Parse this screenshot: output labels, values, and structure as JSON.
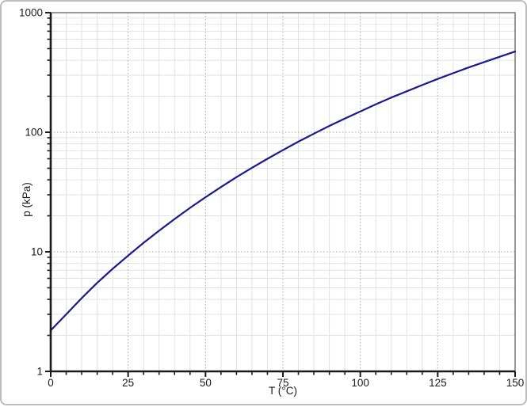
{
  "chart_data": {
    "type": "line",
    "title": "",
    "xlabel": "T (°C)",
    "ylabel": "p (kPa)",
    "x_scale": "linear",
    "y_scale": "log10",
    "xlim": [
      0,
      150
    ],
    "ylim": [
      1,
      1000
    ],
    "x_ticks": [
      0,
      25,
      50,
      75,
      100,
      125,
      150
    ],
    "x_minor_step": 5,
    "y_ticks": [
      1,
      10,
      100,
      1000
    ],
    "y_minor_mantissas": [
      2,
      3,
      4,
      5,
      6,
      7,
      8,
      9
    ],
    "grid": {
      "major_style": "dotted",
      "minor_style": "solid",
      "major_color": "#a8a8a8",
      "minor_color": "#e2e2e2"
    },
    "legend": "none",
    "series": [
      {
        "name": "vapor-pressure-curve",
        "color": "#1a1a8c",
        "width": 2.2,
        "x": [
          0,
          5,
          10,
          15,
          20,
          25,
          30,
          35,
          40,
          45,
          50,
          55,
          60,
          65,
          70,
          75,
          80,
          85,
          90,
          95,
          100,
          105,
          110,
          115,
          120,
          125,
          130,
          135,
          140,
          145,
          150
        ],
        "y": [
          2.2,
          3.0,
          4.1,
          5.5,
          7.2,
          9.3,
          11.9,
          15.0,
          18.8,
          23.3,
          28.6,
          34.8,
          42.1,
          50.4,
          60.0,
          70.9,
          83.4,
          97.3,
          113,
          130,
          149,
          171,
          195,
          220,
          248,
          279,
          312,
          348,
          386,
          428,
          473
        ]
      }
    ],
    "colors": {
      "axis": "#1a1a1a",
      "frame": "#8c8c8c",
      "label": "#1a1a1a",
      "panel_border": "#bdbdbd",
      "background": "#ffffff"
    }
  }
}
